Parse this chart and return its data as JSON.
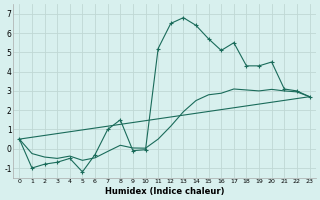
{
  "xlabel": "Humidex (Indice chaleur)",
  "background_color": "#d8f0ee",
  "grid_color": "#c0d8d4",
  "line_color": "#1a6b5a",
  "xlim": [
    -0.5,
    23.5
  ],
  "ylim": [
    -1.5,
    7.5
  ],
  "xticks": [
    0,
    1,
    2,
    3,
    4,
    5,
    6,
    7,
    8,
    9,
    10,
    11,
    12,
    13,
    14,
    15,
    16,
    17,
    18,
    19,
    20,
    21,
    22,
    23
  ],
  "yticks": [
    -1,
    0,
    1,
    2,
    3,
    4,
    5,
    6,
    7
  ],
  "series1_x": [
    0,
    1,
    2,
    3,
    4,
    5,
    6,
    7,
    8,
    9,
    10,
    11,
    12,
    13,
    14,
    15,
    16,
    17,
    18,
    19,
    20,
    21,
    22,
    23
  ],
  "series1_y": [
    0.5,
    -1.0,
    -0.8,
    -0.7,
    -0.5,
    -1.2,
    -0.3,
    1.0,
    1.5,
    -0.1,
    -0.05,
    5.2,
    6.5,
    6.8,
    6.4,
    5.7,
    5.1,
    5.5,
    4.3,
    4.3,
    4.5,
    3.1,
    3.0,
    2.7
  ],
  "series2_x": [
    0,
    23
  ],
  "series2_y": [
    0.5,
    2.7
  ],
  "series3_x": [
    0,
    1,
    2,
    3,
    4,
    5,
    6,
    7,
    8,
    9,
    10,
    11,
    12,
    13,
    14,
    15,
    16,
    17,
    18,
    19,
    20,
    21,
    22,
    23
  ],
  "series3_y": [
    0.5,
    -0.25,
    -0.43,
    -0.5,
    -0.38,
    -0.6,
    -0.47,
    -0.14,
    0.18,
    0.04,
    0.03,
    0.5,
    1.17,
    1.92,
    2.5,
    2.8,
    2.88,
    3.1,
    3.05,
    3.0,
    3.08,
    3.0,
    2.95,
    2.7
  ]
}
